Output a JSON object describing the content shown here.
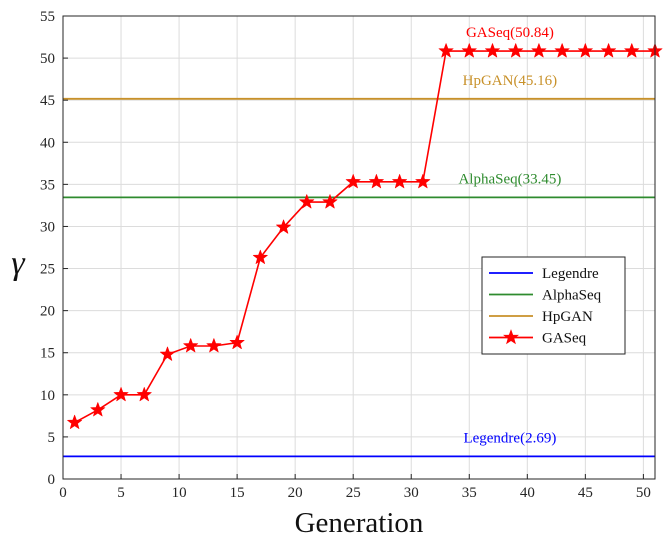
{
  "chart_data": {
    "type": "line",
    "title": "",
    "xlabel": "Generation",
    "ylabel": "γ",
    "xlim": [
      0,
      51
    ],
    "ylim": [
      0,
      55
    ],
    "xticks": [
      0,
      5,
      10,
      15,
      20,
      25,
      30,
      35,
      40,
      45,
      50
    ],
    "yticks": [
      0,
      5,
      10,
      15,
      20,
      25,
      30,
      35,
      40,
      45,
      50,
      55
    ],
    "grid": true,
    "legend_position": "right",
    "series": [
      {
        "name": "Legendre",
        "kind": "hline",
        "value": 2.69,
        "color": "#0000ff"
      },
      {
        "name": "AlphaSeq",
        "kind": "hline",
        "value": 33.45,
        "color": "#2e8b2e"
      },
      {
        "name": "HpGAN",
        "kind": "hline",
        "value": 45.16,
        "color": "#c8912a"
      },
      {
        "name": "GASeq",
        "kind": "line-star",
        "color": "#ff0000",
        "x": [
          1,
          3,
          5,
          7,
          9,
          11,
          13,
          15,
          17,
          19,
          21,
          23,
          25,
          27,
          29,
          31,
          33,
          35,
          37,
          39,
          41,
          43,
          45,
          47,
          49,
          51
        ],
        "y": [
          6.7,
          8.2,
          10.0,
          10.0,
          14.8,
          15.8,
          15.8,
          16.2,
          26.3,
          29.9,
          32.9,
          32.9,
          35.3,
          35.3,
          35.3,
          35.3,
          50.84,
          50.84,
          50.84,
          50.84,
          50.84,
          50.84,
          50.84,
          50.84,
          50.84,
          50.84
        ]
      }
    ],
    "annotations": [
      {
        "text": "GASeq(50.84)",
        "series": "GASeq",
        "x": 38.5,
        "y": 52.5,
        "color": "#ff0000"
      },
      {
        "text": "HpGAN(45.16)",
        "series": "HpGAN",
        "x": 38.5,
        "y": 46.8,
        "color": "#c8912a"
      },
      {
        "text": "AlphaSeq(33.45)",
        "series": "AlphaSeq",
        "x": 38.5,
        "y": 35.1,
        "color": "#2e8b2e"
      },
      {
        "text": "Legendre(2.69)",
        "series": "Legendre",
        "x": 38.5,
        "y": 4.35,
        "color": "#0000ff"
      }
    ]
  }
}
